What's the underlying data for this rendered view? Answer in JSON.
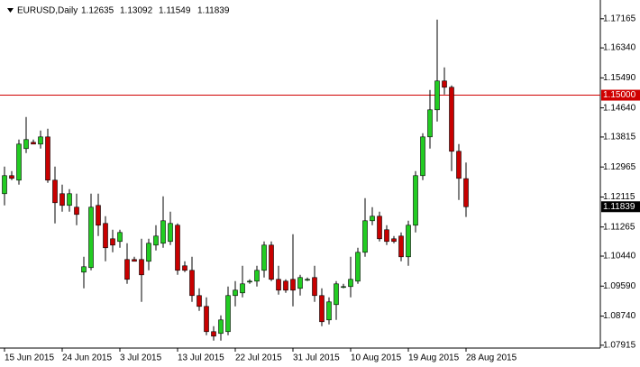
{
  "chart_data": {
    "type": "candlestick",
    "title": "EURUSD,Daily",
    "categories": [
      "15 Jun 2015",
      null,
      null,
      null,
      null,
      null,
      null,
      null,
      "24 Jun 2015",
      null,
      null,
      null,
      null,
      null,
      null,
      null,
      "3 Jul 2015",
      null,
      null,
      null,
      null,
      null,
      null,
      null,
      "13 Jul 2015",
      null,
      null,
      null,
      null,
      null,
      null,
      null,
      "22 Jul 2015",
      null,
      null,
      null,
      null,
      null,
      null,
      null,
      "31 Jul 2015",
      null,
      null,
      null,
      null,
      null,
      null,
      null,
      "10 Aug 2015",
      null,
      null,
      null,
      null,
      null,
      null,
      null,
      "19 Aug 2015",
      null,
      null,
      null,
      null,
      null,
      null,
      null,
      "28 Aug 2015"
    ],
    "open": [
      1.12209,
      1.1272,
      1.12592,
      1.13486,
      1.13665,
      1.13614,
      1.13818,
      1.12592,
      1.12209,
      1.11877,
      1.11826,
      1.09986,
      1.10114,
      1.11877,
      1.11366,
      1.10931,
      1.10855,
      1.10344,
      1.10344,
      1.10344,
      1.10293,
      1.10752,
      1.10804,
      1.10855,
      1.11315,
      1.10165,
      1.10037,
      1.09322,
      1.09015,
      1.083,
      1.08249,
      1.083,
      1.09322,
      1.09398,
      1.0973,
      1.0973,
      1.10037,
      1.10752,
      1.09782,
      1.0973,
      1.09782,
      1.09526,
      1.09782,
      1.09833,
      1.09322,
      1.08632,
      1.09066,
      1.09577,
      1.09577,
      1.0973,
      1.10548,
      1.11442,
      1.1157,
      1.11187,
      1.10931,
      1.11008,
      1.1042,
      1.11315,
      1.1272,
      1.13818,
      1.14585,
      1.15403,
      1.15224,
      1.1341,
      1.12635
    ],
    "high": [
      1.12975,
      1.12848,
      1.13742,
      1.14381,
      1.13742,
      1.13997,
      1.14048,
      1.12975,
      1.12464,
      1.12337,
      1.12209,
      1.1042,
      1.12209,
      1.12209,
      1.1157,
      1.11187,
      1.11187,
      1.10804,
      1.1042,
      1.10931,
      1.10931,
      1.11315,
      1.12132,
      1.11698,
      1.11366,
      1.10293,
      1.1042,
      1.09526,
      1.09271,
      1.08453,
      1.0876,
      1.09577,
      1.0973,
      1.10165,
      1.09782,
      1.10165,
      1.10855,
      1.10855,
      1.10165,
      1.09782,
      1.11059,
      1.09909,
      1.09833,
      1.10165,
      1.09526,
      1.09271,
      1.0973,
      1.09654,
      1.1042,
      1.10676,
      1.12081,
      1.11826,
      1.11698,
      1.11315,
      1.11008,
      1.1111,
      1.11442,
      1.12848,
      1.13921,
      1.15147,
      1.1714,
      1.15786,
      1.15275,
      1.13614,
      1.13092
    ],
    "low": [
      1.11877,
      1.12592,
      1.12464,
      1.13359,
      1.13614,
      1.13486,
      1.12515,
      1.11366,
      1.11698,
      1.11698,
      1.11315,
      1.09526,
      1.10037,
      1.11008,
      1.10293,
      1.10548,
      1.10676,
      1.09654,
      1.10293,
      1.09143,
      1.10037,
      1.10599,
      1.10676,
      1.10752,
      1.09909,
      1.09986,
      1.09143,
      1.08887,
      1.08197,
      1.08044,
      1.08044,
      1.08197,
      1.09015,
      1.09271,
      1.09654,
      1.09577,
      1.09833,
      1.0973,
      1.09347,
      1.09398,
      1.09015,
      1.09322,
      1.0973,
      1.09143,
      1.08453,
      1.08504,
      1.08632,
      1.09526,
      1.09271,
      1.09654,
      1.1042,
      1.11315,
      1.10855,
      1.10752,
      1.10804,
      1.10293,
      1.10165,
      1.1111,
      1.12592,
      1.13486,
      1.14253,
      1.15019,
      1.12848,
      1.1203,
      1.11549
    ],
    "close": [
      1.1272,
      1.12643,
      1.13614,
      1.13742,
      1.13614,
      1.13818,
      1.12592,
      1.11953,
      1.11877,
      1.12209,
      1.11621,
      1.10139,
      1.11826,
      1.11315,
      1.10676,
      1.10752,
      1.1111,
      1.09782,
      1.10293,
      1.09909,
      1.10804,
      1.11008,
      1.11442,
      1.11366,
      1.10037,
      1.10037,
      1.09322,
      1.09015,
      1.083,
      1.08172,
      1.08632,
      1.09322,
      1.09475,
      1.09654,
      1.0973,
      1.10037,
      1.10752,
      1.09782,
      1.09475,
      1.09475,
      1.09475,
      1.09833,
      1.09782,
      1.09322,
      1.08581,
      1.09143,
      1.09654,
      1.09577,
      1.09782,
      1.10548,
      1.11442,
      1.1157,
      1.10931,
      1.10855,
      1.10855,
      1.1042,
      1.11315,
      1.1272,
      1.13818,
      1.14585,
      1.15403,
      1.15224,
      1.1341,
      1.12643,
      1.11839
    ],
    "up_color": "#22cc22",
    "down_color": "#c80000",
    "ylim": [
      1.0786,
      1.1762
    ],
    "yticks": [
      1.17165,
      {
        "value": 1.1634,
        "label": "1.16340"
      },
      {
        "value": 1.1549,
        "label": "1.15490"
      },
      {
        "value": 1.1464,
        "label": "1.14640"
      },
      1.13815,
      1.12965,
      1.12115,
      1.11265,
      {
        "value": 1.1044,
        "label": "1.10440"
      },
      {
        "value": 1.0959,
        "label": "1.09590"
      },
      {
        "value": 1.0874,
        "label": "1.08740"
      },
      1.07915
    ],
    "hline": {
      "value": 1.15,
      "label": "1.15000",
      "color": "#d00000"
    }
  }
}
